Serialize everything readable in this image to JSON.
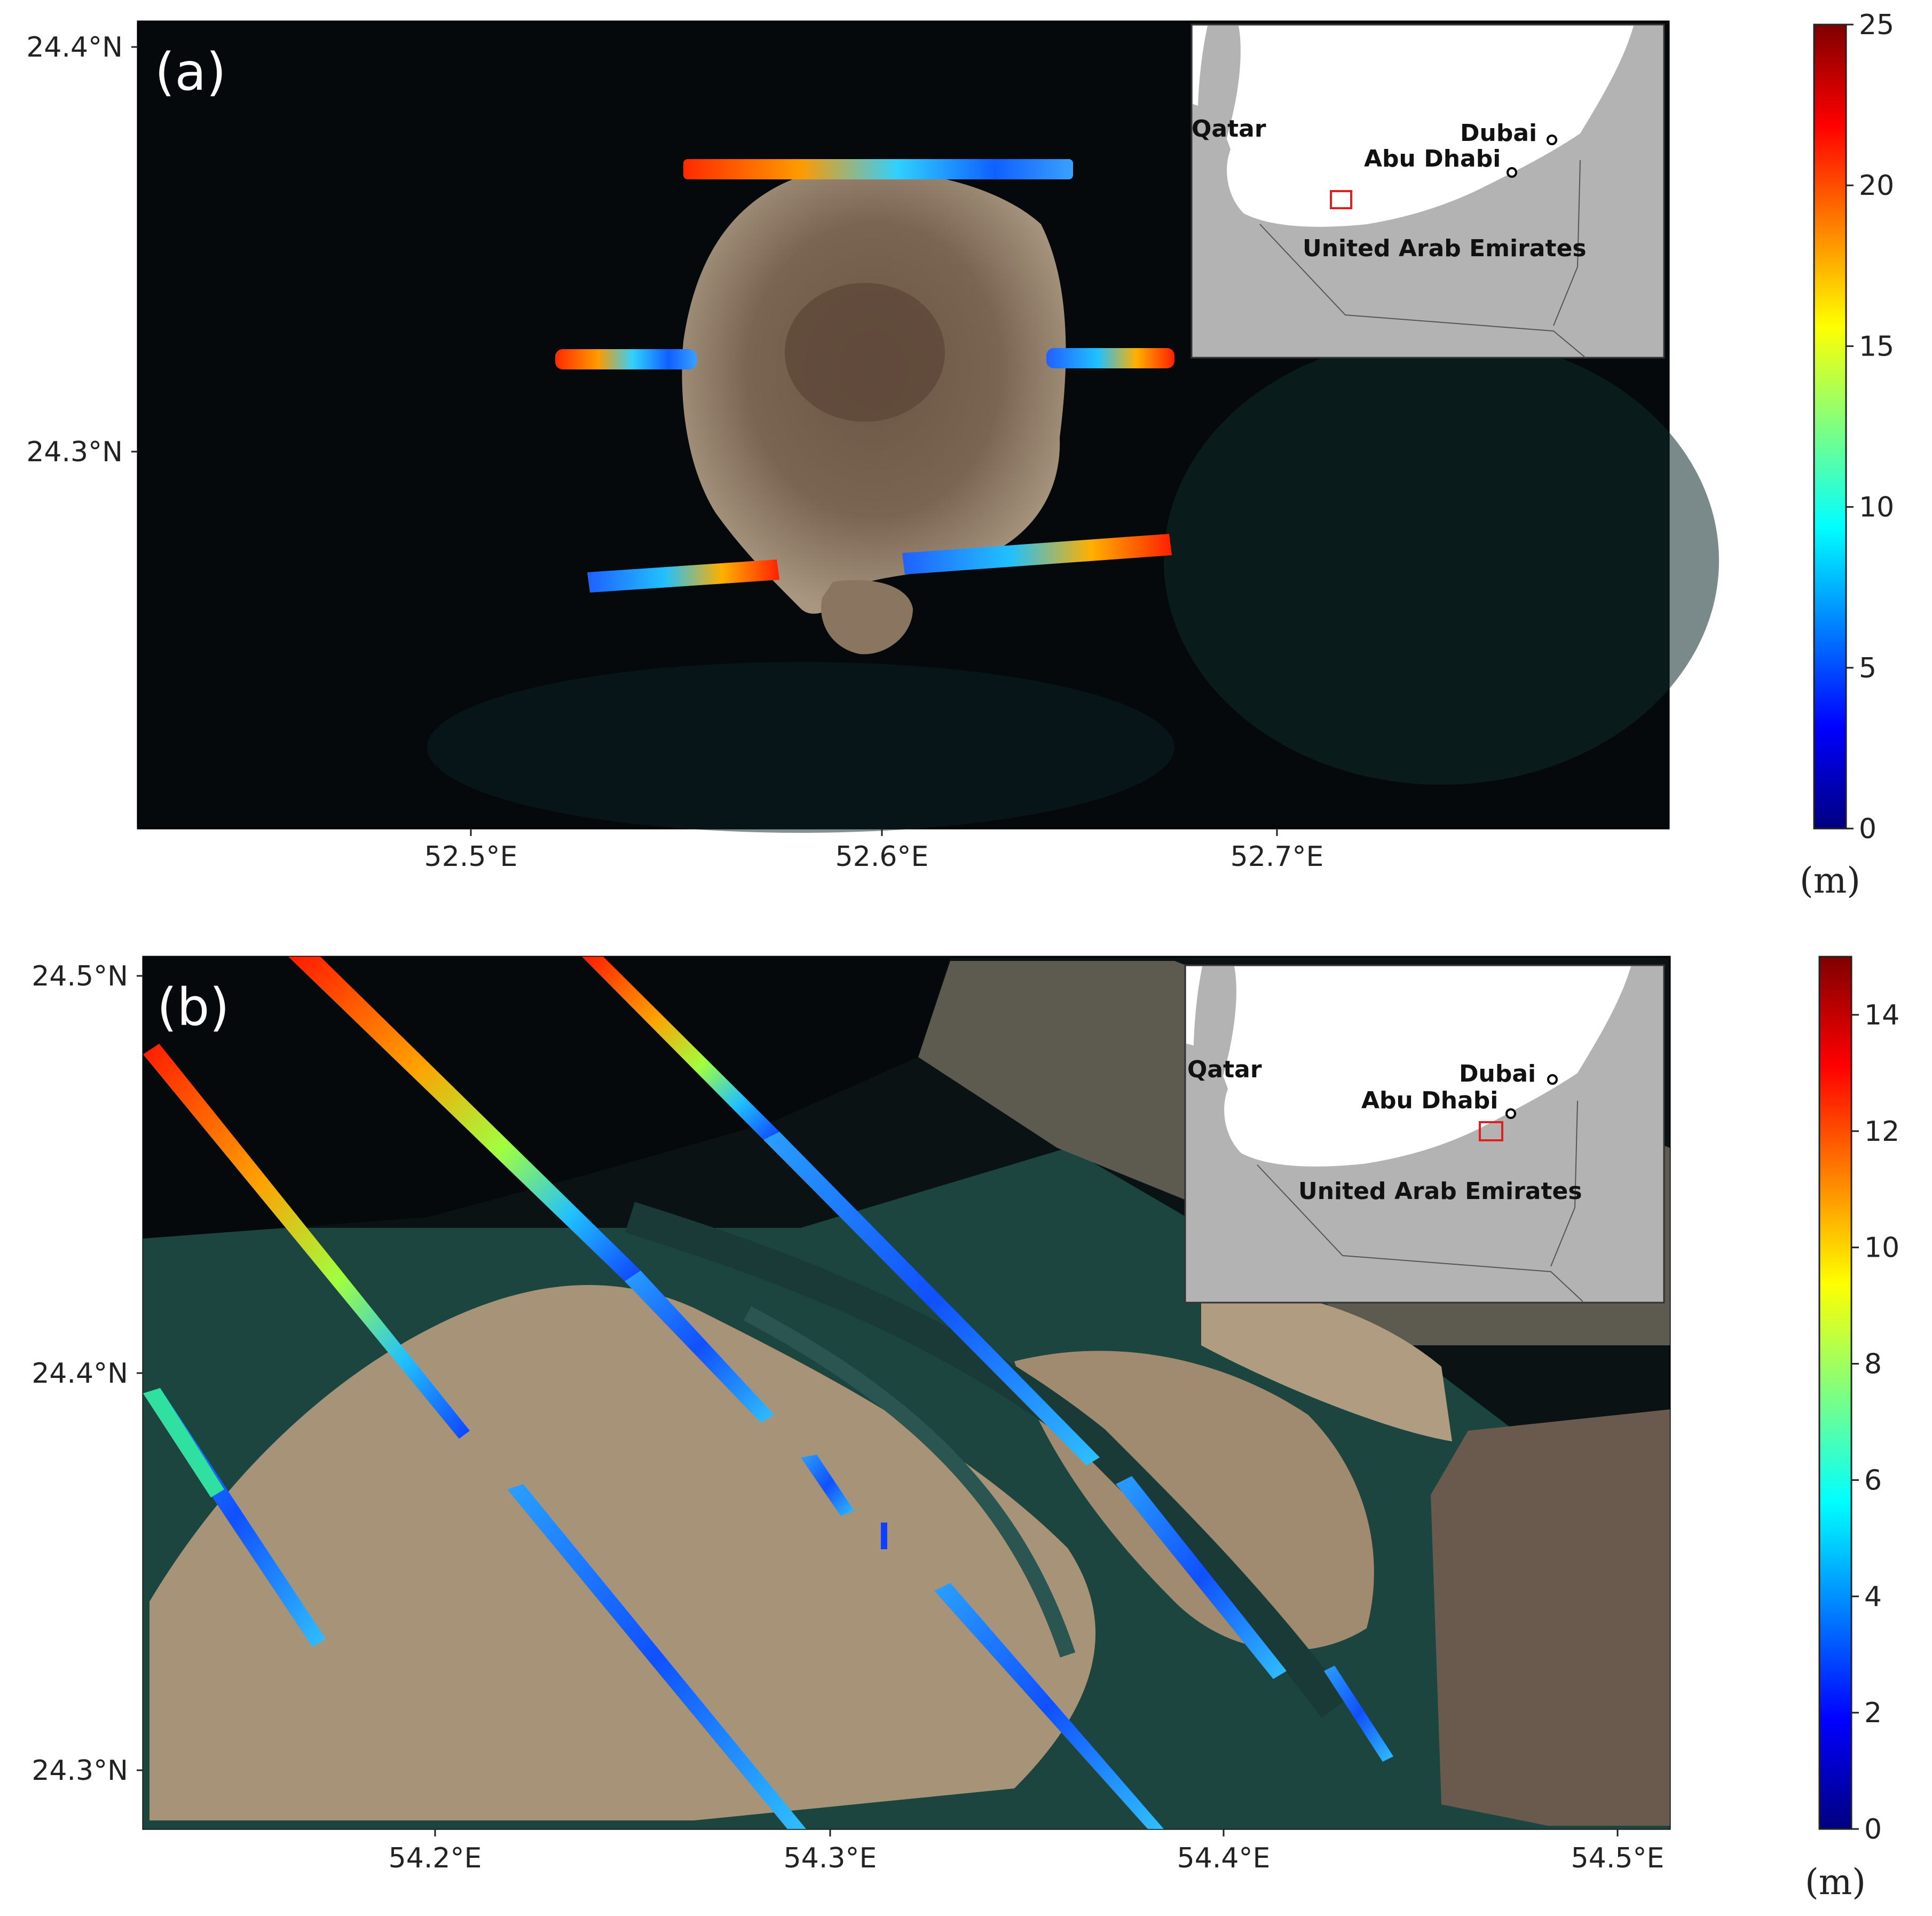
{
  "panels": [
    {
      "label": "(a)",
      "y_ticks": [
        "24.4°N",
        "24.3°N"
      ],
      "x_ticks": [
        "52.5°E",
        "52.6°E",
        "52.7°E"
      ],
      "colorbar": {
        "ticks": [
          "0",
          "5",
          "10",
          "15",
          "20",
          "25"
        ],
        "min": 0,
        "max": 25,
        "unit": "(m)"
      },
      "inset": {
        "labels": {
          "qatar": "Qatar",
          "dubai": "Dubai",
          "abu_dhabi": "Abu Dhabi",
          "uae": "United Arab Emirates"
        }
      }
    },
    {
      "label": "(b)",
      "y_ticks": [
        "24.5°N",
        "24.4°N",
        "24.3°N"
      ],
      "x_ticks": [
        "54.2°E",
        "54.3°E",
        "54.4°E",
        "54.5°E"
      ],
      "colorbar": {
        "ticks": [
          "0",
          "2",
          "4",
          "6",
          "8",
          "10",
          "12",
          "14"
        ],
        "min": 0,
        "max": 15,
        "unit": "(m)"
      },
      "inset": {
        "labels": {
          "qatar": "Qatar",
          "dubai": "Dubai",
          "abu_dhabi": "Abu Dhabi",
          "uae": "United Arab Emirates"
        }
      }
    }
  ],
  "colors": {
    "ocean_dark": "#05090b",
    "land_sand": "#a79478",
    "island_brown": "#7a6552",
    "inset_land": "#b3b3b3",
    "inset_marker": "#e02020"
  },
  "colormap": "jet"
}
